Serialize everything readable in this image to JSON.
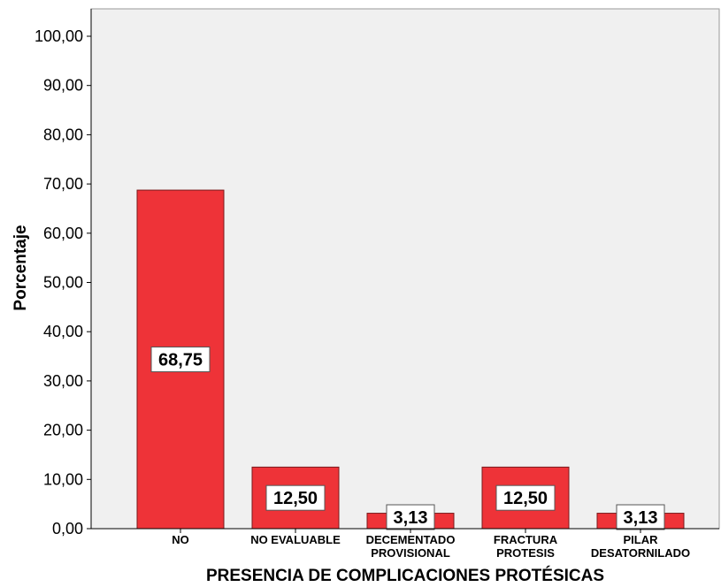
{
  "chart_data": {
    "type": "bar",
    "categories": [
      [
        "NO"
      ],
      [
        "NO EVALUABLE"
      ],
      [
        "DECEMENTADO",
        "PROVISIONAL"
      ],
      [
        "FRACTURA",
        "PROTESIS"
      ],
      [
        "PILAR",
        "DESATORNILADO"
      ]
    ],
    "values": [
      68.75,
      12.5,
      3.13,
      12.5,
      3.13
    ],
    "data_labels": [
      "68,75",
      "12,50",
      "3,13",
      "12,50",
      "3,13"
    ],
    "xlabel": "PRESENCIA DE COMPLICACIONES PROTÉSICAS",
    "ylabel": "Porcentaje",
    "ylim": [
      0,
      100
    ],
    "yticks": [
      "0,00",
      "10,00",
      "20,00",
      "30,00",
      "40,00",
      "50,00",
      "60,00",
      "70,00",
      "80,00",
      "90,00",
      "100,00"
    ],
    "grid": false,
    "bar_color": "#ee3338",
    "plot_background": "#f0f0f0"
  }
}
